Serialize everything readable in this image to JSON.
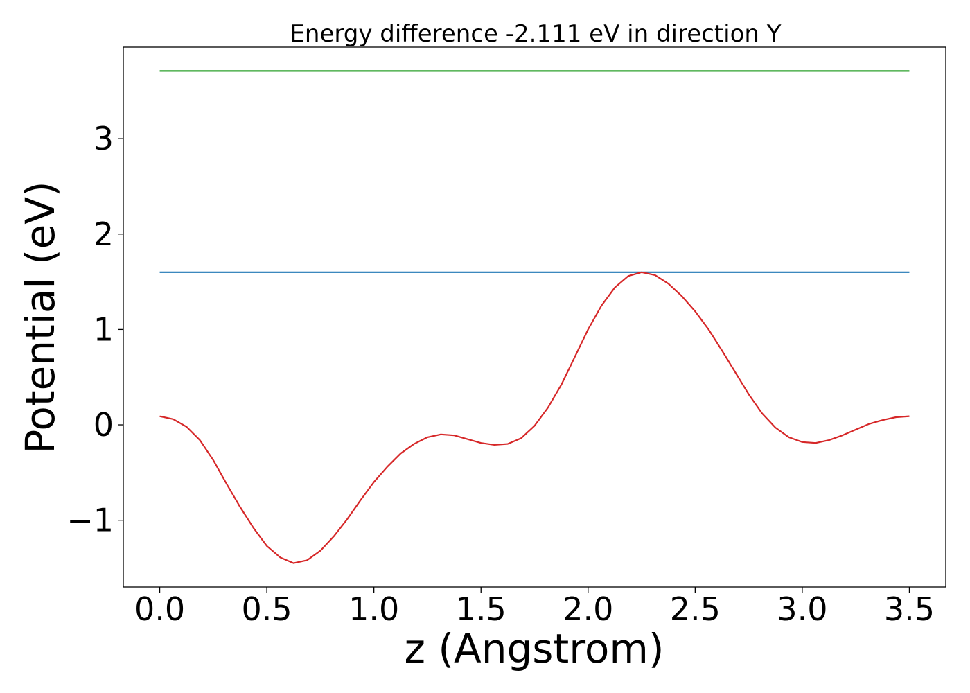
{
  "chart_data": {
    "type": "line",
    "title": "Energy difference -2.111 eV in direction Y",
    "xlabel": "z (Angstrom)",
    "ylabel": "Potential (eV)",
    "xlim": [
      -0.17,
      3.67
    ],
    "ylim": [
      -1.7,
      3.96
    ],
    "xticks": [
      0.0,
      0.5,
      1.0,
      1.5,
      2.0,
      2.5,
      3.0,
      3.5
    ],
    "xtick_labels": [
      "0.0",
      "0.5",
      "1.0",
      "1.5",
      "2.0",
      "2.5",
      "3.0",
      "3.5"
    ],
    "yticks": [
      -1,
      0,
      1,
      2,
      3
    ],
    "ytick_labels": [
      "−1",
      "0",
      "1",
      "2",
      "3"
    ],
    "grid": false,
    "legend": false,
    "series": [
      {
        "color": "#2ca02c",
        "x": [
          0.0,
          3.5
        ],
        "y": [
          3.71,
          3.71
        ]
      },
      {
        "color": "#1f77b4",
        "x": [
          0.0,
          3.5
        ],
        "y": [
          1.6,
          1.6
        ]
      },
      {
        "color": "#d62728",
        "x": [
          0.0,
          0.0625,
          0.125,
          0.1875,
          0.25,
          0.3125,
          0.375,
          0.4375,
          0.5,
          0.5625,
          0.625,
          0.6875,
          0.75,
          0.8125,
          0.875,
          0.9375,
          1.0,
          1.0625,
          1.125,
          1.1875,
          1.25,
          1.3125,
          1.375,
          1.4375,
          1.5,
          1.5625,
          1.625,
          1.6875,
          1.75,
          1.8125,
          1.875,
          1.9375,
          2.0,
          2.0625,
          2.125,
          2.1875,
          2.25,
          2.3125,
          2.375,
          2.4375,
          2.5,
          2.5625,
          2.625,
          2.6875,
          2.75,
          2.8125,
          2.875,
          2.9375,
          3.0,
          3.0625,
          3.125,
          3.1875,
          3.25,
          3.3125,
          3.375,
          3.4375,
          3.5
        ],
        "y": [
          0.09,
          0.06,
          -0.02,
          -0.16,
          -0.37,
          -0.62,
          -0.86,
          -1.08,
          -1.27,
          -1.39,
          -1.45,
          -1.42,
          -1.32,
          -1.17,
          -0.99,
          -0.79,
          -0.6,
          -0.44,
          -0.3,
          -0.2,
          -0.13,
          -0.1,
          -0.11,
          -0.15,
          -0.19,
          -0.21,
          -0.2,
          -0.14,
          -0.01,
          0.18,
          0.42,
          0.71,
          1.0,
          1.25,
          1.44,
          1.56,
          1.6,
          1.57,
          1.48,
          1.35,
          1.19,
          1.0,
          0.78,
          0.55,
          0.32,
          0.12,
          -0.03,
          -0.13,
          -0.18,
          -0.19,
          -0.16,
          -0.11,
          -0.05,
          0.01,
          0.05,
          0.08,
          0.09
        ]
      }
    ]
  }
}
